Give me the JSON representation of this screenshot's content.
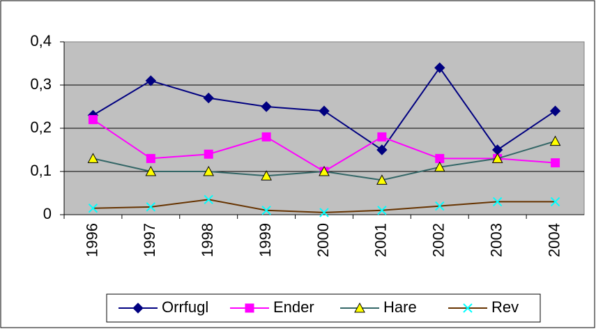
{
  "chart_data": {
    "type": "line",
    "categories": [
      "1996",
      "1997",
      "1998",
      "1999",
      "2000",
      "2001",
      "2002",
      "2003",
      "2004"
    ],
    "series": [
      {
        "name": "Orrfugl",
        "color": "#000080",
        "marker": "diamond",
        "marker_color": "#000080",
        "values": [
          0.23,
          0.31,
          0.27,
          0.25,
          0.24,
          0.15,
          0.34,
          0.15,
          0.24
        ]
      },
      {
        "name": "Ender",
        "color": "#ff00ff",
        "marker": "square",
        "marker_color": "#ff00ff",
        "values": [
          0.22,
          0.13,
          0.14,
          0.18,
          0.1,
          0.18,
          0.13,
          0.13,
          0.12
        ]
      },
      {
        "name": "Hare",
        "color": "#336666",
        "marker": "triangle",
        "marker_color": "#ffff00",
        "values": [
          0.13,
          0.1,
          0.1,
          0.09,
          0.1,
          0.08,
          0.11,
          0.13,
          0.17
        ]
      },
      {
        "name": "Rev",
        "color": "#663300",
        "marker": "x",
        "marker_color": "#00ffff",
        "values": [
          0.015,
          0.018,
          0.035,
          0.01,
          0.005,
          0.01,
          0.02,
          0.03,
          0.03
        ]
      }
    ],
    "ylim": [
      0,
      0.4
    ],
    "yticks": [
      0,
      {
        "value": 0.1,
        "label": "0,1"
      },
      {
        "value": 0.2,
        "label": "0,2"
      },
      {
        "value": 0.3,
        "label": "0,3"
      },
      {
        "value": 0.4,
        "label": "0,4"
      }
    ],
    "grid": true,
    "plot_background": "#c0c0c0",
    "legend": "bottom"
  }
}
